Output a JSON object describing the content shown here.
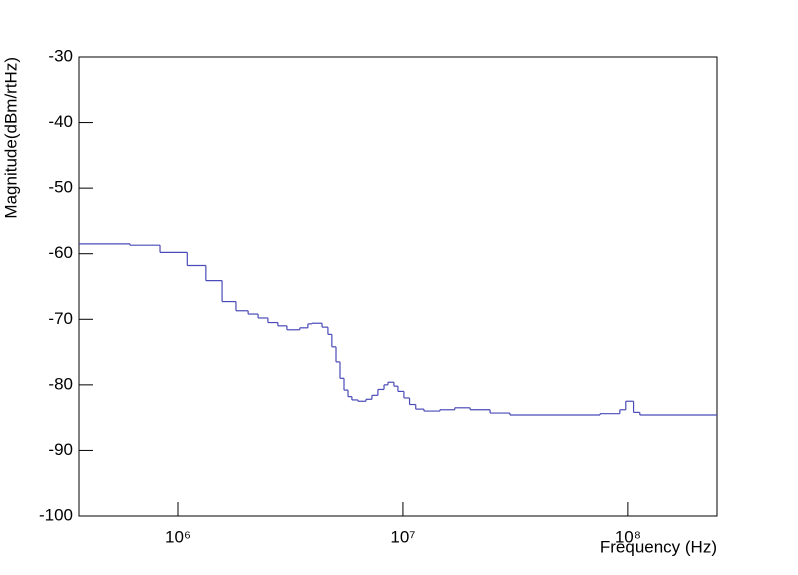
{
  "chart_data": {
    "type": "histogram",
    "x_label": "Frequency (Hz)",
    "y_label": "Magnitude(dBm/rtHz)",
    "bins": [
      363000,
      612000,
      832000,
      1100000,
      1330000,
      1570000,
      1810000,
      2050000,
      2270000,
      2510000,
      2780000,
      3050000,
      3480000,
      3780000,
      3940000,
      4370000,
      4640000,
      4830000,
      5040000,
      5250000,
      5470000,
      5700000,
      5930000,
      6310000,
      6850000,
      7280000,
      7740000,
      8240000,
      8580000,
      9120000,
      9500000,
      10100000,
      10700000,
      11400000,
      12400000,
      14600000,
      17000000,
      19900000,
      24400000,
      29900000,
      75200000,
      92100000,
      97900000,
      106000000,
      113000000,
      249000000
    ],
    "values": [
      -58.5,
      -58.7,
      -59.8,
      -61.8,
      -64.1,
      -67.3,
      -68.7,
      -69.2,
      -69.8,
      -70.5,
      -71.0,
      -71.6,
      -71.3,
      -70.7,
      -70.6,
      -71.2,
      -72.3,
      -74.2,
      -76.5,
      -79.0,
      -80.8,
      -81.8,
      -82.3,
      -82.5,
      -82.2,
      -81.6,
      -80.7,
      -80.0,
      -79.6,
      -80.2,
      -81.0,
      -82.0,
      -83.0,
      -83.7,
      -84.0,
      -83.8,
      -83.5,
      -83.8,
      -84.3,
      -84.6,
      -84.4,
      -83.8,
      -82.5,
      -84.2,
      -84.6
    ],
    "color": "#4a4ab8",
    "x_log": true,
    "xlim": [
      363000,
      249000000
    ],
    "xticks": [
      {
        "value": 1000000,
        "label": "10⁶"
      },
      {
        "value": 10000000,
        "label": "10⁷"
      },
      {
        "value": 100000000,
        "label": "10⁸"
      }
    ],
    "ylim": [
      -100,
      -30
    ],
    "yticks": [
      -100,
      -90,
      -80,
      -70,
      -60,
      -50,
      -40,
      -30
    ]
  }
}
